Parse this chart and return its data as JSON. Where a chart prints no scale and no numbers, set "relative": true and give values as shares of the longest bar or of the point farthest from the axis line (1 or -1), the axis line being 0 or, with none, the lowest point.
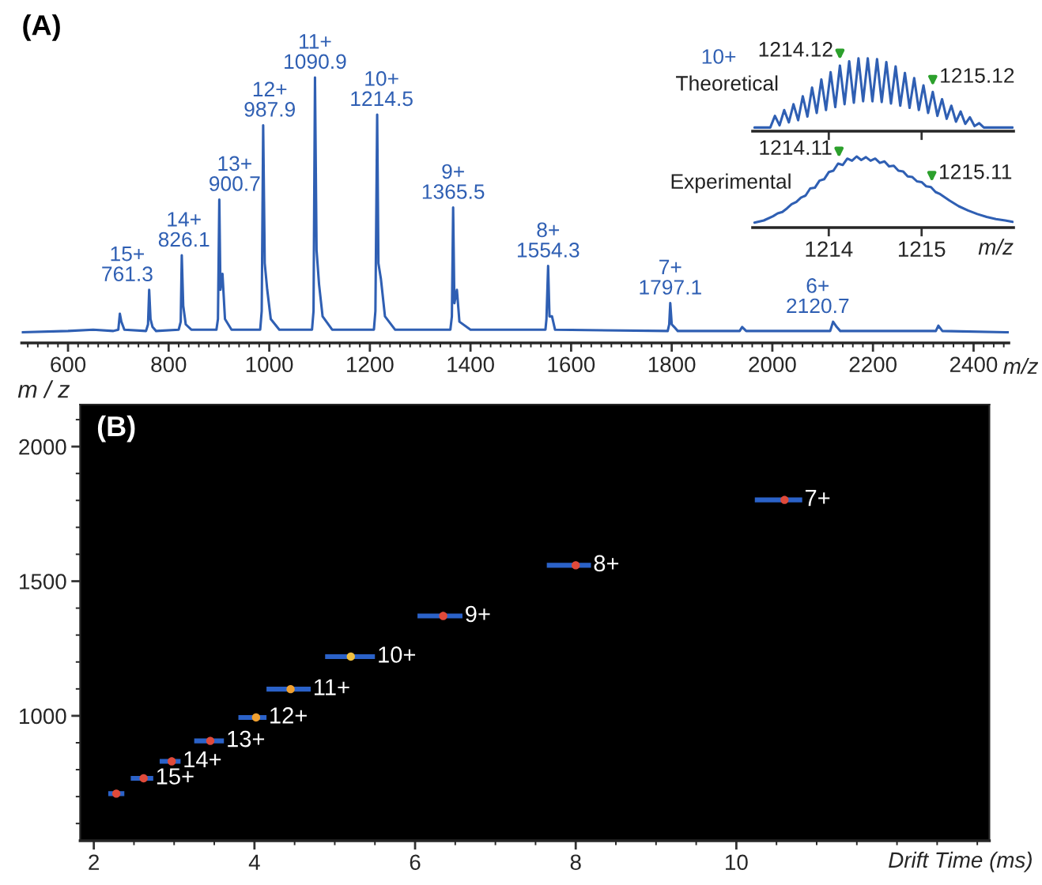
{
  "chart_data": [
    {
      "type": "line",
      "title": "(A)",
      "relative": true,
      "xlabel": "m/z",
      "xlim": [
        508,
        2470
      ],
      "xticks": [
        600,
        800,
        1000,
        1200,
        1400,
        1600,
        1800,
        2000,
        2200,
        2400
      ],
      "series": [
        {
          "color": "#2f5fb3",
          "x": [
            508,
            600,
            650,
            690,
            700,
            703,
            706,
            712,
            755,
            759,
            761.3,
            764,
            768,
            775,
            820,
            824,
            826.1,
            829,
            834,
            845,
            895,
            898,
            900.7,
            903,
            907,
            912,
            925,
            982,
            985,
            987.9,
            991,
            996,
            1003,
            1020,
            1085,
            1088,
            1090.9,
            1094,
            1099,
            1106,
            1125,
            1208,
            1211,
            1214.5,
            1217,
            1222,
            1230,
            1250,
            1360,
            1363,
            1365.5,
            1368,
            1373,
            1378,
            1400,
            1549,
            1551,
            1554.3,
            1557,
            1562,
            1568,
            1792,
            1795,
            1797.1,
            1800,
            1805,
            1812,
            1935,
            1940,
            1948,
            2115,
            2120.7,
            2128,
            2135,
            2325,
            2330,
            2338,
            2470
          ],
          "values": [
            0.04,
            0.045,
            0.05,
            0.045,
            0.05,
            0.11,
            0.08,
            0.05,
            0.045,
            0.07,
            0.2,
            0.09,
            0.06,
            0.045,
            0.05,
            0.08,
            0.33,
            0.14,
            0.07,
            0.05,
            0.05,
            0.09,
            0.54,
            0.2,
            0.26,
            0.09,
            0.05,
            0.05,
            0.12,
            0.82,
            0.3,
            0.2,
            0.09,
            0.05,
            0.05,
            0.12,
            1.0,
            0.35,
            0.22,
            0.1,
            0.05,
            0.05,
            0.12,
            0.86,
            0.3,
            0.24,
            0.1,
            0.05,
            0.05,
            0.1,
            0.51,
            0.15,
            0.2,
            0.08,
            0.05,
            0.05,
            0.09,
            0.29,
            0.1,
            0.1,
            0.05,
            0.045,
            0.07,
            0.15,
            0.07,
            0.06,
            0.045,
            0.045,
            0.06,
            0.045,
            0.045,
            0.08,
            0.06,
            0.045,
            0.045,
            0.065,
            0.045,
            0.04
          ]
        }
      ],
      "annotations": [
        {
          "text": "15+\n761.3",
          "x": 761.3,
          "y": 0.2
        },
        {
          "text": "14+\n826.1",
          "x": 826.1,
          "y": 0.33
        },
        {
          "text": "13+\n900.7",
          "x": 900.7,
          "y": 0.54
        },
        {
          "text": "12+\n987.9",
          "x": 987.9,
          "y": 0.82
        },
        {
          "text": "11+\n1090.9",
          "x": 1090.9,
          "y": 1.0
        },
        {
          "text": "10+\n1214.5",
          "x": 1214.5,
          "y": 0.86
        },
        {
          "text": "9+\n1365.5",
          "x": 1365.5,
          "y": 0.51
        },
        {
          "text": "8+\n1554.3",
          "x": 1554.3,
          "y": 0.29
        },
        {
          "text": "7+\n1797.1",
          "x": 1797.1,
          "y": 0.15
        },
        {
          "text": "6+\n2120.7",
          "x": 2120.7,
          "y": 0.08
        }
      ]
    },
    {
      "type": "line",
      "relative": true,
      "xlim": [
        1213.18,
        1215.99
      ],
      "xticks": [
        1214,
        1215
      ],
      "tick_labels": false,
      "series": [
        {
          "name": "Theoretical",
          "color": "#2f5fb3",
          "x": [
            1213.2,
            1213.37,
            1213.42,
            1213.47,
            1213.52,
            1213.57,
            1213.62,
            1213.67,
            1213.72,
            1213.77,
            1213.82,
            1213.87,
            1213.92,
            1213.97,
            1214.02,
            1214.07,
            1214.12,
            1214.17,
            1214.22,
            1214.27,
            1214.32,
            1214.37,
            1214.42,
            1214.47,
            1214.52,
            1214.57,
            1214.62,
            1214.67,
            1214.72,
            1214.77,
            1214.82,
            1214.87,
            1214.92,
            1214.97,
            1215.02,
            1215.07,
            1215.12,
            1215.17,
            1215.22,
            1215.27,
            1215.32,
            1215.37,
            1215.42,
            1215.47,
            1215.52,
            1215.57,
            1215.62,
            1215.67,
            1215.98
          ],
          "values": [
            0.05,
            0.05,
            0.21,
            0.08,
            0.29,
            0.12,
            0.37,
            0.15,
            0.48,
            0.2,
            0.6,
            0.25,
            0.71,
            0.29,
            0.81,
            0.33,
            0.9,
            0.37,
            0.96,
            0.39,
            1.0,
            0.41,
            1.0,
            0.41,
            0.99,
            0.4,
            0.95,
            0.38,
            0.89,
            0.35,
            0.8,
            0.32,
            0.73,
            0.29,
            0.63,
            0.25,
            0.54,
            0.21,
            0.44,
            0.17,
            0.35,
            0.13,
            0.27,
            0.1,
            0.19,
            0.07,
            0.11,
            0.05,
            0.05
          ]
        }
      ],
      "annotations": [
        "10+",
        {
          "text": "1214.12",
          "x": 1214.12,
          "y": 0.9
        },
        {
          "text": "1215.12",
          "x": 1215.12,
          "y": 0.54
        }
      ]
    },
    {
      "type": "line",
      "relative": true,
      "xlim": [
        1213.18,
        1215.99
      ],
      "xticks": [
        1214,
        1215
      ],
      "tick_labels": "x",
      "xlabel": "m/z",
      "series": [
        {
          "name": "Experimental",
          "color": "#2f5fb3",
          "x": [
            1213.2,
            1213.3,
            1213.4,
            1213.45,
            1213.5,
            1213.55,
            1213.6,
            1213.65,
            1213.7,
            1213.75,
            1213.8,
            1213.85,
            1213.9,
            1213.95,
            1214.0,
            1214.05,
            1214.1,
            1214.15,
            1214.2,
            1214.25,
            1214.3,
            1214.35,
            1214.4,
            1214.45,
            1214.5,
            1214.55,
            1214.6,
            1214.65,
            1214.7,
            1214.75,
            1214.8,
            1214.85,
            1214.9,
            1214.95,
            1215.0,
            1215.05,
            1215.1,
            1215.15,
            1215.2,
            1215.3,
            1215.4,
            1215.5,
            1215.6,
            1215.7,
            1215.8,
            1215.9,
            1215.98
          ],
          "values": [
            0.07,
            0.1,
            0.16,
            0.2,
            0.22,
            0.27,
            0.33,
            0.36,
            0.42,
            0.45,
            0.55,
            0.56,
            0.66,
            0.68,
            0.78,
            0.8,
            0.9,
            0.88,
            0.97,
            0.94,
            1.0,
            0.95,
            0.99,
            0.94,
            0.97,
            0.91,
            0.93,
            0.86,
            0.87,
            0.8,
            0.79,
            0.72,
            0.71,
            0.65,
            0.64,
            0.58,
            0.57,
            0.5,
            0.47,
            0.38,
            0.3,
            0.24,
            0.19,
            0.15,
            0.12,
            0.1,
            0.08
          ]
        }
      ],
      "annotations": [
        {
          "text": "1214.11",
          "x": 1214.11,
          "y": 0.9
        },
        {
          "text": "1215.11",
          "x": 1215.11,
          "y": 0.56
        }
      ]
    },
    {
      "type": "scatter",
      "title": "(B)",
      "xlabel": "Drift Time (ms)",
      "ylabel": "m / z",
      "xlim": [
        1.83,
        13.15
      ],
      "xticks": [
        2,
        4,
        6,
        8,
        10
      ],
      "ylim": [
        536,
        2156
      ],
      "yticks": [
        1000,
        1500,
        2000
      ],
      "marker": "circle",
      "series": [
        {
          "color": "#2b62c8",
          "colors": [
            "#e04a3a",
            "#e04a3a",
            "#e04a3a",
            "#e04a3a",
            "#f0a030",
            "#f0a030",
            "#f0c040",
            "#e04a3a",
            "#e04a3a",
            "#e04a3a"
          ],
          "x": [
            2.28,
            2.62,
            2.97,
            3.45,
            4.02,
            4.45,
            5.2,
            6.35,
            8.0,
            10.6
          ],
          "values": [
            711,
            768,
            831,
            907,
            994,
            1099,
            1220,
            1371,
            1559,
            1802
          ],
          "xerrors": [
            [
              2.18,
              2.38
            ],
            [
              2.46,
              2.74
            ],
            [
              2.82,
              3.08
            ],
            [
              3.25,
              3.62
            ],
            [
              3.8,
              4.15
            ],
            [
              4.15,
              4.7
            ],
            [
              4.88,
              5.5
            ],
            [
              6.03,
              6.59
            ],
            [
              7.64,
              8.19
            ],
            [
              10.23,
              10.82
            ]
          ]
        }
      ],
      "annotations": [
        {
          "text": "15+",
          "x": 2.74,
          "y": 768
        },
        {
          "text": "14+",
          "x": 3.08,
          "y": 831
        },
        {
          "text": "13+",
          "x": 3.62,
          "y": 907
        },
        {
          "text": "12+",
          "x": 4.15,
          "y": 994
        },
        {
          "text": "11+",
          "x": 4.7,
          "y": 1099
        },
        {
          "text": "10+",
          "x": 5.5,
          "y": 1220
        },
        {
          "text": "9+",
          "x": 6.59,
          "y": 1371
        },
        {
          "text": "8+",
          "x": 8.19,
          "y": 1559
        },
        {
          "text": "7+",
          "x": 10.82,
          "y": 1802
        }
      ]
    }
  ]
}
